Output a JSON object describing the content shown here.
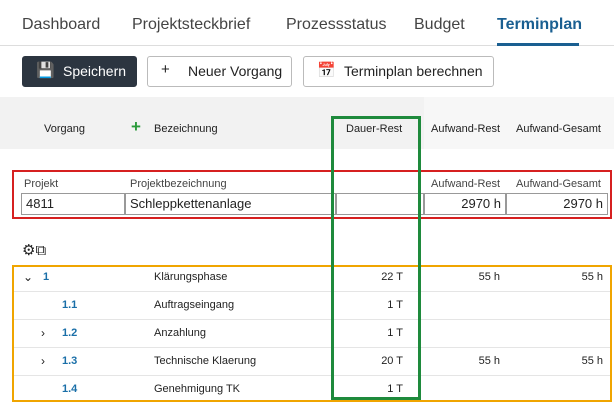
{
  "tabs": [
    {
      "label": "Dashboard",
      "active": false
    },
    {
      "label": "Projektsteckbrief",
      "active": false
    },
    {
      "label": "Prozessstatus",
      "active": false
    },
    {
      "label": "Budget",
      "active": false
    },
    {
      "label": "Terminplan",
      "active": true
    }
  ],
  "toolbar": {
    "buttons": [
      "Speichern",
      "Neuer Vorgang",
      "Terminplan berechnen"
    ]
  },
  "table": {
    "columns": [
      "Vorgang",
      "Bezeichnung",
      "Dauer-Rest",
      "Aufwand-Rest",
      "Aufwand-Gesamt"
    ]
  },
  "project": {
    "labels": [
      "Projekt",
      "Projektbezeichnung",
      "Aufwand-Rest",
      "Aufwand-Gesamt"
    ],
    "number": "4811",
    "name": "Schleppkettenanlage",
    "aufwand_rest": "2970 h",
    "aufwand_gesamt": "2970 h"
  },
  "rows": [
    {
      "id": "1",
      "name": "Klärungsphase",
      "dauer": "22 T",
      "aufwand_rest": "55 h",
      "aufwand_gesamt": "55 h",
      "toggle": "open",
      "level": 0
    },
    {
      "id": "1.1",
      "name": "Auftragseingang",
      "dauer": "1 T",
      "level": 1
    },
    {
      "id": "1.2",
      "name": "Anzahlung",
      "dauer": "1 T",
      "toggle": "closed",
      "level": 1
    },
    {
      "id": "1.3",
      "name": "Technische Klaerung",
      "dauer": "20 T",
      "aufwand_rest": "55 h",
      "aufwand_gesamt": "55 h",
      "toggle": "closed",
      "level": 1
    },
    {
      "id": "1.4",
      "name": "Genehmigung TK",
      "dauer": "1 T",
      "level": 1
    }
  ]
}
